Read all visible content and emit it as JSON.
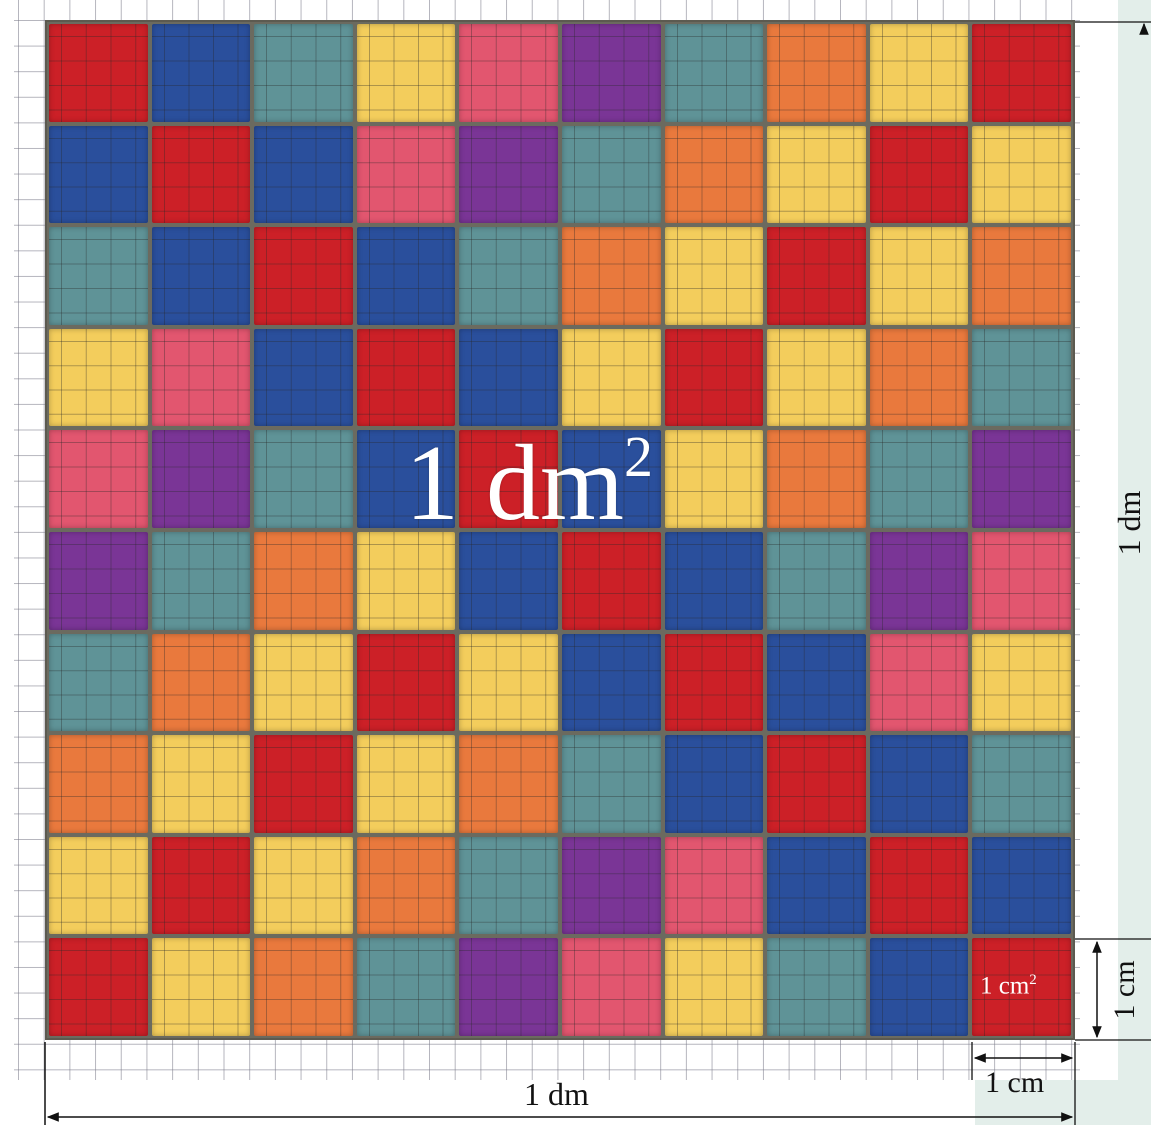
{
  "labels": {
    "area_big": "1 dm",
    "area_big_sup": "2",
    "area_small": "1 cm",
    "area_small_sup": "2",
    "side_bottom": "1 dm",
    "side_right": "1 dm",
    "cell_bottom": "1 cm",
    "cell_right": "1 cm"
  },
  "palette": {
    "R": "#cc2027",
    "B": "#2a4f9c",
    "T": "#5f9397",
    "Y": "#f3cd5c",
    "P": "#e2566f",
    "V": "#7a3596",
    "O": "#e9793d"
  },
  "tiles": [
    [
      "R",
      "B",
      "T",
      "Y",
      "P",
      "V",
      "T",
      "O",
      "Y",
      "R"
    ],
    [
      "B",
      "R",
      "B",
      "P",
      "V",
      "T",
      "O",
      "Y",
      "R",
      "Y"
    ],
    [
      "T",
      "B",
      "R",
      "B",
      "T",
      "O",
      "Y",
      "R",
      "Y",
      "O"
    ],
    [
      "Y",
      "P",
      "B",
      "R",
      "B",
      "Y",
      "R",
      "Y",
      "O",
      "T"
    ],
    [
      "P",
      "V",
      "T",
      "B",
      "R",
      "B",
      "Y",
      "O",
      "T",
      "V"
    ],
    [
      "V",
      "T",
      "O",
      "Y",
      "B",
      "R",
      "B",
      "T",
      "V",
      "P"
    ],
    [
      "T",
      "O",
      "Y",
      "R",
      "Y",
      "B",
      "R",
      "B",
      "P",
      "Y"
    ],
    [
      "O",
      "Y",
      "R",
      "Y",
      "O",
      "T",
      "B",
      "R",
      "B",
      "T"
    ],
    [
      "Y",
      "R",
      "Y",
      "O",
      "T",
      "V",
      "P",
      "B",
      "R",
      "B"
    ],
    [
      "R",
      "Y",
      "O",
      "T",
      "V",
      "P",
      "Y",
      "T",
      "B",
      "R"
    ]
  ]
}
